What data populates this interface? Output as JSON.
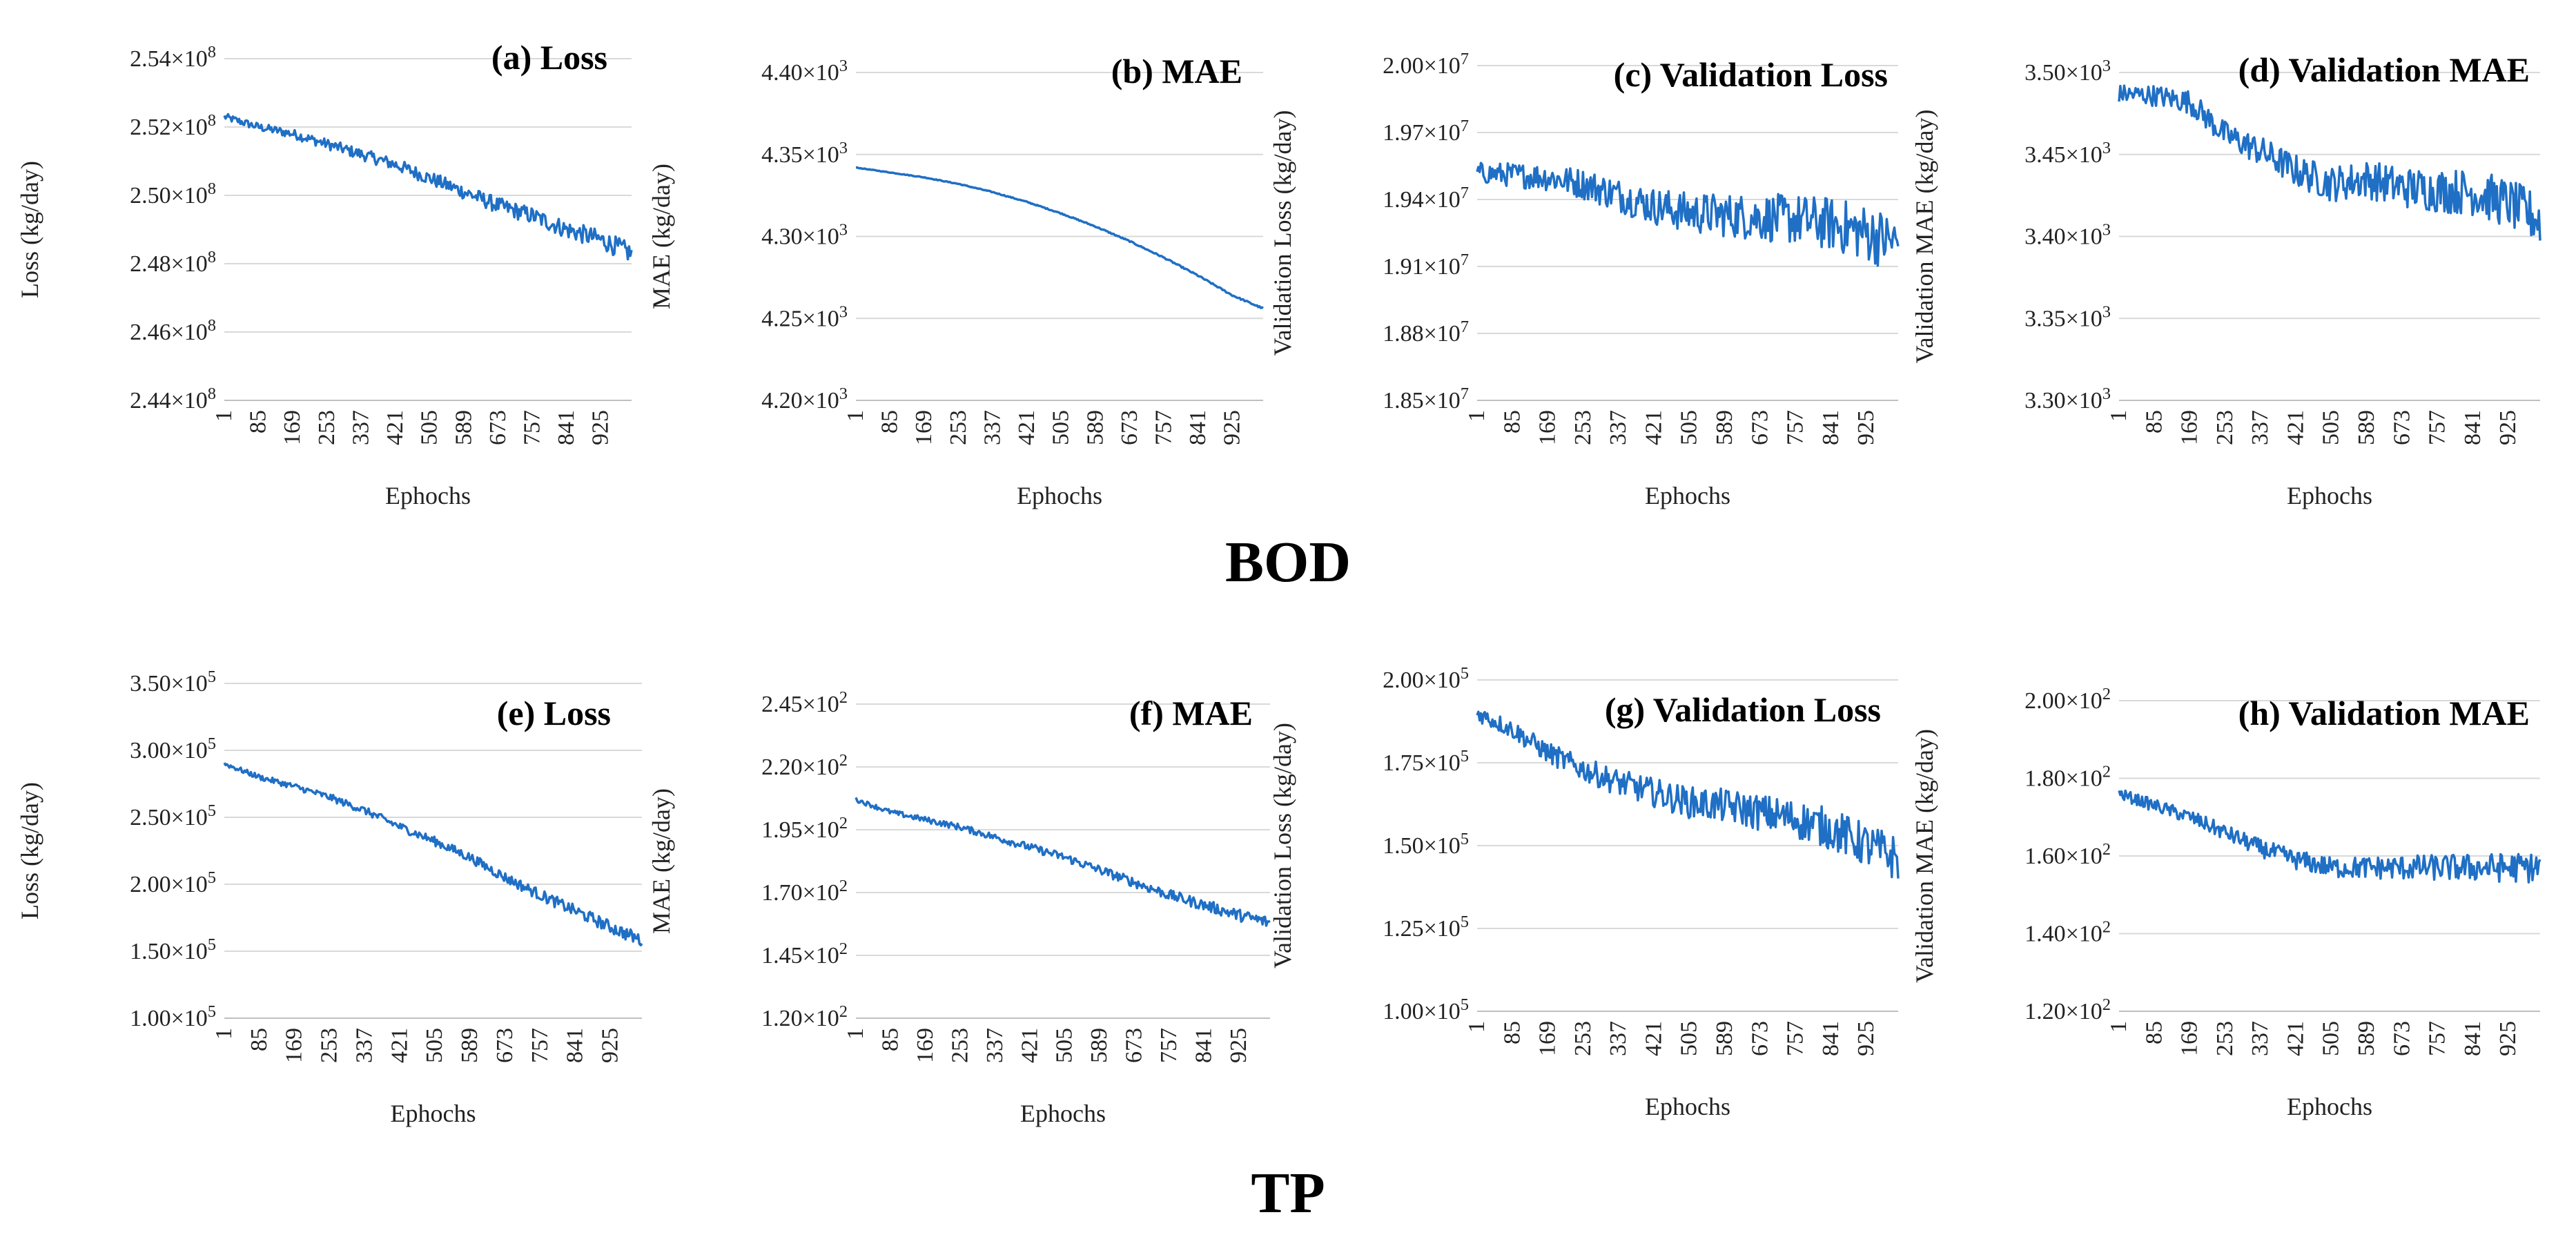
{
  "figure": {
    "group_labels": [
      "BOD",
      "TP"
    ]
  },
  "style": {
    "line_color": "#1f6fc5",
    "grid_color": "#d9d9d9",
    "axis_color": "#bfbfbf"
  },
  "chart_data": [
    {
      "id": "a",
      "type": "line",
      "title": "(a) Loss",
      "xlabel": "Ephochs",
      "ylabel": "Loss (kg/day)",
      "ylim": [
        244000000,
        254000000
      ],
      "xlim": [
        1,
        1000
      ],
      "y_ticks": [
        244000000,
        246000000,
        248000000,
        250000000,
        252000000,
        254000000
      ],
      "y_tick_labels": [
        "2.44×10^8",
        "2.46×10^8",
        "2.48×10^8",
        "2.50×10^8",
        "2.52×10^8",
        "2.54×10^8"
      ],
      "x_tick_labels": [
        "1",
        "85",
        "169",
        "253",
        "337",
        "421",
        "505",
        "589",
        "673",
        "757",
        "841",
        "925"
      ],
      "grid": true,
      "series": [
        {
          "x": [
            1,
            85,
            169,
            253,
            337,
            421,
            505,
            589,
            673,
            757,
            841,
            925,
            1000
          ],
          "values": [
            252300000,
            252000000,
            251800000,
            251500000,
            251200000,
            250900000,
            250500000,
            250100000,
            249700000,
            249400000,
            249000000,
            248700000,
            248300000
          ],
          "noise": 0.06
        }
      ]
    },
    {
      "id": "b",
      "type": "line",
      "title": "(b) MAE",
      "xlabel": "Ephochs",
      "ylabel": "MAE (kg/day)",
      "ylim": [
        4200,
        4400
      ],
      "xlim": [
        1,
        1000
      ],
      "y_ticks": [
        4200,
        4250,
        4300,
        4350,
        4400
      ],
      "y_tick_labels": [
        "4.20×10^3",
        "4.25×10^3",
        "4.30×10^3",
        "4.35×10^3",
        "4.40×10^3"
      ],
      "x_tick_labels": [
        "1",
        "85",
        "169",
        "253",
        "337",
        "421",
        "505",
        "589",
        "673",
        "757",
        "841",
        "925"
      ],
      "grid": true,
      "series": [
        {
          "x": [
            1,
            85,
            169,
            253,
            337,
            421,
            505,
            589,
            673,
            757,
            841,
            925,
            1000
          ],
          "values": [
            4342,
            4339,
            4336,
            4332,
            4327,
            4321,
            4314,
            4306,
            4297,
            4287,
            4276,
            4264,
            4256
          ],
          "noise": 0.005
        }
      ]
    },
    {
      "id": "c",
      "type": "line",
      "title": "(c) Validation Loss",
      "xlabel": "Ephochs",
      "ylabel": "Validation Loss (kg/day)",
      "ylim": [
        18500000,
        20000000
      ],
      "xlim": [
        1,
        1000
      ],
      "y_ticks": [
        18500000,
        18800000,
        19100000,
        19400000,
        19700000,
        20000000
      ],
      "y_tick_labels": [
        "1.85×10^7",
        "1.88×10^7",
        "1.91×10^7",
        "1.94×10^7",
        "1.97×10^7",
        "2.00×10^7"
      ],
      "x_tick_labels": [
        "1",
        "85",
        "169",
        "253",
        "337",
        "421",
        "505",
        "589",
        "673",
        "757",
        "841",
        "925"
      ],
      "grid": true,
      "series": [
        {
          "x": [
            1,
            85,
            169,
            253,
            337,
            421,
            505,
            589,
            673,
            757,
            841,
            925,
            1000
          ],
          "values": [
            19520000,
            19510000,
            19500000,
            19470000,
            19420000,
            19370000,
            19340000,
            19330000,
            19320000,
            19310000,
            19290000,
            19250000,
            19200000
          ],
          "noise": 0.18
        }
      ]
    },
    {
      "id": "d",
      "type": "line",
      "title": "(d) Validation MAE",
      "xlabel": "Ephochs",
      "ylabel": "Validation MAE (kg/day)",
      "ylim": [
        3300,
        3500
      ],
      "xlim": [
        1,
        1000
      ],
      "y_ticks": [
        3300,
        3350,
        3400,
        3450,
        3500
      ],
      "y_tick_labels": [
        "3.30×10^3",
        "3.35×10^3",
        "3.40×10^3",
        "3.45×10^3",
        "3.50×10^3"
      ],
      "x_tick_labels": [
        "1",
        "85",
        "169",
        "253",
        "337",
        "421",
        "505",
        "589",
        "673",
        "757",
        "841",
        "925"
      ],
      "grid": true,
      "series": [
        {
          "x": [
            1,
            85,
            169,
            253,
            337,
            421,
            505,
            589,
            673,
            757,
            841,
            925,
            1000
          ],
          "values": [
            3487,
            3486,
            3482,
            3462,
            3452,
            3440,
            3432,
            3435,
            3430,
            3428,
            3427,
            3420,
            3410
          ],
          "noise": 0.16
        }
      ]
    },
    {
      "id": "e",
      "type": "line",
      "title": "(e) Loss",
      "xlabel": "Ephochs",
      "ylabel": "Loss (kg/day)",
      "ylim": [
        100000,
        350000
      ],
      "xlim": [
        1,
        1000
      ],
      "y_ticks": [
        100000,
        150000,
        200000,
        250000,
        300000,
        350000
      ],
      "y_tick_labels": [
        "1.00×10^5",
        "1.50×10^5",
        "2.00×10^5",
        "2.50×10^5",
        "3.00×10^5",
        "3.50×10^5"
      ],
      "x_tick_labels": [
        "1",
        "85",
        "169",
        "253",
        "337",
        "421",
        "505",
        "589",
        "673",
        "757",
        "841",
        "925"
      ],
      "grid": true,
      "series": [
        {
          "x": [
            1,
            85,
            169,
            253,
            337,
            421,
            505,
            589,
            673,
            757,
            841,
            925,
            1000
          ],
          "values": [
            290000,
            280000,
            273000,
            265000,
            255000,
            243000,
            232000,
            220000,
            205000,
            192000,
            180000,
            168000,
            158000
          ],
          "noise": 0.04
        }
      ]
    },
    {
      "id": "f",
      "type": "line",
      "title": "(f) MAE",
      "xlabel": "Ephochs",
      "ylabel": "MAE (kg/day)",
      "ylim": [
        120,
        245
      ],
      "xlim": [
        1,
        1000
      ],
      "y_ticks": [
        120,
        145,
        170,
        195,
        220,
        245
      ],
      "y_tick_labels": [
        "1.20×10^2",
        "1.45×10^2",
        "1.70×10^2",
        "1.95×10^2",
        "2.20×10^2",
        "2.45×10^2"
      ],
      "x_tick_labels": [
        "1",
        "85",
        "169",
        "253",
        "337",
        "421",
        "505",
        "589",
        "673",
        "757",
        "841",
        "925"
      ],
      "grid": true,
      "series": [
        {
          "x": [
            1,
            85,
            169,
            253,
            337,
            421,
            505,
            589,
            673,
            757,
            841,
            925,
            1000
          ],
          "values": [
            207,
            202,
            199,
            196,
            192,
            188,
            184,
            179,
            174,
            169,
            165,
            161,
            158
          ],
          "noise": 0.04
        }
      ]
    },
    {
      "id": "g",
      "type": "line",
      "title": "(g) Validation Loss",
      "xlabel": "Ephochs",
      "ylabel": "Validation Loss (kg/day)",
      "ylim": [
        100000,
        200000
      ],
      "xlim": [
        1,
        1000
      ],
      "y_ticks": [
        100000,
        125000,
        150000,
        175000,
        200000
      ],
      "y_tick_labels": [
        "1.00×10^5",
        "1.25×10^5",
        "1.50×10^5",
        "1.75×10^5",
        "2.00×10^5"
      ],
      "x_tick_labels": [
        "1",
        "85",
        "169",
        "253",
        "337",
        "421",
        "505",
        "589",
        "673",
        "757",
        "841",
        "925"
      ],
      "grid": true,
      "series": [
        {
          "x": [
            1,
            85,
            169,
            253,
            337,
            421,
            505,
            589,
            673,
            757,
            841,
            925,
            1000
          ],
          "values": [
            190000,
            185000,
            178000,
            173000,
            169000,
            166000,
            163000,
            162000,
            160000,
            158000,
            155000,
            150000,
            146000
          ],
          "noise": 0.14
        }
      ]
    },
    {
      "id": "h",
      "type": "line",
      "title": "(h) Validation MAE",
      "xlabel": "Ephochs",
      "ylabel": "Validation MAE (kg/day)",
      "ylim": [
        120,
        200
      ],
      "xlim": [
        1,
        1000
      ],
      "y_ticks": [
        120,
        140,
        160,
        180,
        200
      ],
      "y_tick_labels": [
        "1.20×10^2",
        "1.40×10^2",
        "1.60×10^2",
        "1.80×10^2",
        "2.00×10^2"
      ],
      "x_tick_labels": [
        "1",
        "85",
        "169",
        "253",
        "337",
        "421",
        "505",
        "589",
        "673",
        "757",
        "841",
        "925"
      ],
      "grid": true,
      "series": [
        {
          "x": [
            1,
            85,
            169,
            253,
            337,
            421,
            505,
            589,
            673,
            757,
            841,
            925,
            1000
          ],
          "values": [
            176000,
            173000,
            170000,
            166000,
            162000,
            159000,
            157000,
            157000,
            157000,
            157000,
            157000,
            157000,
            157000
          ],
          "scale": 0.001,
          "noise": 0.1
        }
      ]
    }
  ]
}
